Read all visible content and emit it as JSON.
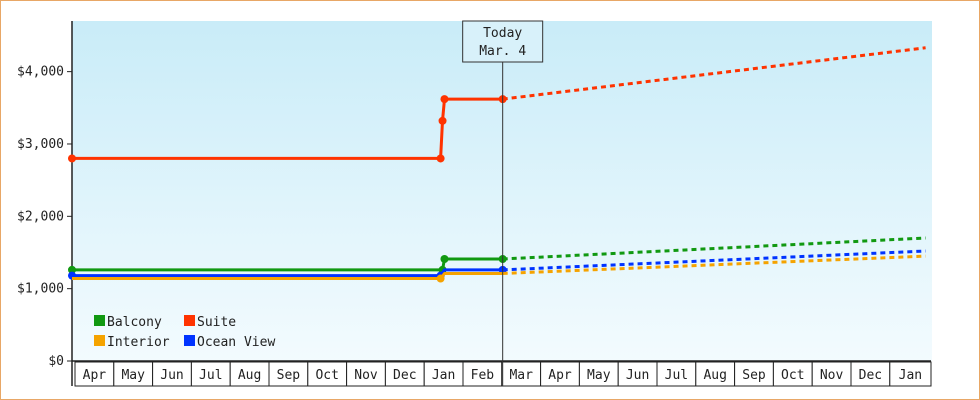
{
  "chart_data": {
    "type": "line",
    "x_unit": "months since start of Apr (first year)",
    "y_ticks": [
      "$0",
      "$1,000",
      "$2,000",
      "$3,000",
      "$4,000"
    ],
    "ylim": [
      0,
      4700
    ],
    "month_labels": [
      "Apr",
      "May",
      "Jun",
      "Jul",
      "Aug",
      "Sep",
      "Oct",
      "Nov",
      "Dec",
      "Jan",
      "Feb",
      "Mar",
      "Apr",
      "May",
      "Jun",
      "Jul",
      "Aug",
      "Sep",
      "Oct",
      "Nov",
      "Dec",
      "Jan"
    ],
    "today": {
      "line1": "Today",
      "line2": "Mar. 4",
      "x": 11.1
    },
    "legend": [
      {
        "label": "Balcony",
        "color": "#119911"
      },
      {
        "label": "Suite",
        "color": "#ff3300"
      },
      {
        "label": "Interior",
        "color": "#f5a300"
      },
      {
        "label": "Ocean View",
        "color": "#0033ff"
      }
    ],
    "series": [
      {
        "name": "Suite",
        "color": "#ff3300",
        "history": [
          [
            0,
            2800
          ],
          [
            9.5,
            2800
          ],
          [
            9.55,
            3320
          ],
          [
            9.6,
            3620
          ],
          [
            11.1,
            3620
          ]
        ],
        "markers": [
          [
            0,
            2800
          ],
          [
            9.5,
            2800
          ],
          [
            9.55,
            3320
          ],
          [
            9.6,
            3620
          ],
          [
            11.1,
            3620
          ]
        ],
        "forecast": [
          [
            11.1,
            3620
          ],
          [
            22,
            4330
          ]
        ]
      },
      {
        "name": "Balcony",
        "color": "#119911",
        "history": [
          [
            0,
            1260
          ],
          [
            9.55,
            1260
          ],
          [
            9.6,
            1410
          ],
          [
            11.1,
            1410
          ]
        ],
        "markers": [
          [
            0,
            1260
          ],
          [
            9.55,
            1260
          ],
          [
            9.6,
            1410
          ],
          [
            11.1,
            1410
          ]
        ],
        "forecast": [
          [
            11.1,
            1410
          ],
          [
            22,
            1700
          ]
        ]
      },
      {
        "name": "Ocean View",
        "color": "#0033ff",
        "history": [
          [
            0,
            1180
          ],
          [
            9.5,
            1180
          ],
          [
            9.6,
            1260
          ],
          [
            11.1,
            1260
          ]
        ],
        "markers": [
          [
            0,
            1180
          ],
          [
            9.5,
            1180
          ],
          [
            11.1,
            1260
          ]
        ],
        "forecast": [
          [
            11.1,
            1260
          ],
          [
            22,
            1520
          ]
        ]
      },
      {
        "name": "Interior",
        "color": "#f5a300",
        "history": [
          [
            0,
            1140
          ],
          [
            9.5,
            1140
          ],
          [
            9.6,
            1210
          ],
          [
            11.1,
            1210
          ]
        ],
        "markers": [
          [
            9.5,
            1140
          ]
        ],
        "forecast": [
          [
            11.1,
            1210
          ],
          [
            22,
            1450
          ]
        ]
      }
    ]
  }
}
